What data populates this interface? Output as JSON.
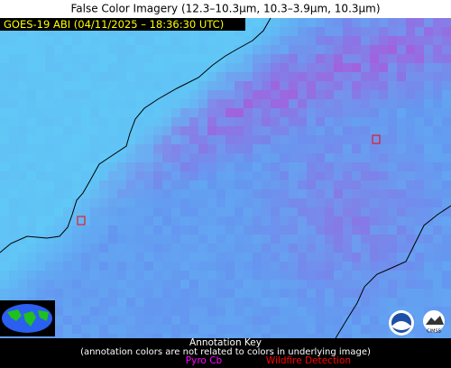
{
  "header": {
    "title": "False Color Imagery (12.3–10.3µm, 10.3–3.9µm, 10.3µm)"
  },
  "overlay": {
    "label": "GOES-19 ABI (04/11/2025 – 18:36:30 UTC)"
  },
  "annotation_key": {
    "title": "Annotation Key",
    "note": "(annotation colors are not related to colors in underlying image)",
    "items": [
      {
        "label": "Pyro Cb",
        "color": "#ff00ff"
      },
      {
        "label": "Wildfire Detection",
        "color": "#ff0000"
      }
    ]
  },
  "logos": {
    "cimss": "CIMSS"
  }
}
